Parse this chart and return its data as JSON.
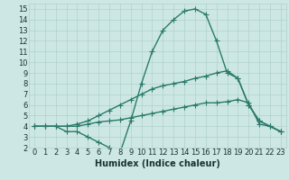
{
  "title": "",
  "xlabel": "Humidex (Indice chaleur)",
  "xlim": [
    -0.5,
    23.5
  ],
  "ylim": [
    2,
    15.5
  ],
  "xticks": [
    0,
    1,
    2,
    3,
    4,
    5,
    6,
    7,
    8,
    9,
    10,
    11,
    12,
    13,
    14,
    15,
    16,
    17,
    18,
    19,
    20,
    21,
    22,
    23
  ],
  "yticks": [
    2,
    3,
    4,
    5,
    6,
    7,
    8,
    9,
    10,
    11,
    12,
    13,
    14,
    15
  ],
  "background_color": "#cde8e4",
  "line_color": "#2a7a6a",
  "grid_color": "#b0d0cc",
  "series": [
    [
      4,
      4,
      4,
      3.5,
      3.5,
      3,
      2.5,
      2,
      1.5,
      4.5,
      8,
      11,
      13,
      14,
      14.8,
      15.0,
      14.5,
      12,
      9,
      8.5,
      6,
      4.5,
      4,
      3.5
    ],
    [
      4,
      4,
      4,
      4.0,
      4.2,
      4.5,
      5.0,
      5.5,
      6.0,
      6.5,
      7.0,
      7.5,
      7.8,
      8.0,
      8.2,
      8.5,
      8.7,
      9.0,
      9.2,
      8.5,
      6.0,
      4.5,
      4.0,
      3.5
    ],
    [
      4,
      4,
      4,
      4.0,
      4.0,
      4.2,
      4.4,
      4.5,
      4.6,
      4.8,
      5.0,
      5.2,
      5.4,
      5.6,
      5.8,
      6.0,
      6.2,
      6.2,
      6.3,
      6.5,
      6.2,
      4.2,
      4.0,
      3.5
    ]
  ],
  "marker": "+",
  "markersize": 4,
  "linewidth": 1.0,
  "font_size": 7,
  "tick_fontsize": 6,
  "xlabel_fontsize": 7
}
